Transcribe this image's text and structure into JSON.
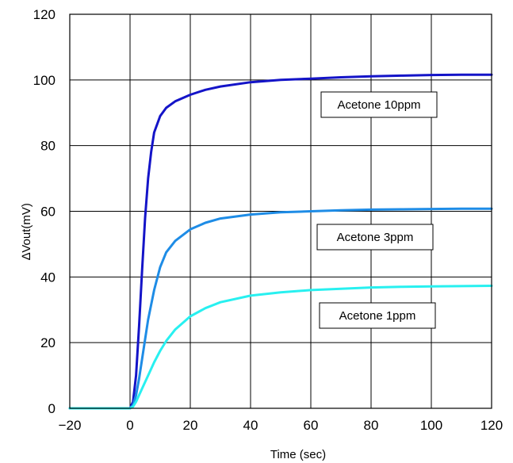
{
  "chart_data": {
    "type": "line",
    "title": "",
    "xlabel": "Time (sec)",
    "ylabel": "∆Vout(mV)",
    "xlim": [
      -20,
      120
    ],
    "ylim": [
      0,
      120
    ],
    "x_ticks": [
      -20,
      0,
      20,
      40,
      60,
      80,
      100,
      120
    ],
    "y_ticks": [
      0,
      20,
      40,
      60,
      80,
      100,
      120
    ],
    "x_tick_labels": [
      "−20",
      "0",
      "20",
      "40",
      "60",
      "80",
      "100",
      "120"
    ],
    "y_tick_labels": [
      "0",
      "20",
      "40",
      "60",
      "80",
      "100",
      "120"
    ],
    "grid": true,
    "series": [
      {
        "name": "Acetone 10ppm",
        "color": "#1414c8",
        "x": [
          -20,
          0,
          1,
          2,
          3,
          4,
          5,
          6,
          7,
          8,
          10,
          12,
          15,
          20,
          25,
          30,
          40,
          50,
          60,
          70,
          80,
          90,
          100,
          110,
          120
        ],
        "y": [
          0,
          0,
          2,
          10,
          25,
          42,
          58,
          70,
          78,
          84,
          89,
          91.5,
          93.5,
          95.5,
          97,
          98,
          99.3,
          100,
          100.4,
          100.8,
          101.1,
          101.3,
          101.5,
          101.6,
          101.6
        ]
      },
      {
        "name": "Acetone 3ppm",
        "color": "#1e8ce6",
        "x": [
          -20,
          0,
          1,
          2,
          3,
          4,
          5,
          6,
          8,
          10,
          12,
          15,
          20,
          25,
          30,
          40,
          50,
          60,
          70,
          80,
          90,
          100,
          110,
          120
        ],
        "y": [
          0,
          0,
          1,
          4,
          9,
          15,
          21,
          27,
          36,
          43,
          47.5,
          51,
          54.5,
          56.5,
          57.8,
          59,
          59.7,
          60,
          60.3,
          60.5,
          60.6,
          60.7,
          60.8,
          60.8
        ]
      },
      {
        "name": "Acetone 1ppm",
        "color": "#28f0f0",
        "x": [
          -20,
          0,
          1,
          2,
          4,
          6,
          8,
          10,
          12,
          15,
          20,
          25,
          30,
          40,
          50,
          60,
          70,
          80,
          90,
          100,
          110,
          120
        ],
        "y": [
          0,
          0,
          0.5,
          2,
          6,
          10,
          14,
          17.5,
          20.5,
          24,
          28,
          30.5,
          32.3,
          34.3,
          35.3,
          36,
          36.4,
          36.8,
          37,
          37.1,
          37.2,
          37.3
        ]
      }
    ],
    "annotations": [
      {
        "text": "Acetone 10ppm",
        "series": 0
      },
      {
        "text": "Acetone 3ppm",
        "series": 1
      },
      {
        "text": "Acetone 1ppm",
        "series": 2
      }
    ]
  }
}
